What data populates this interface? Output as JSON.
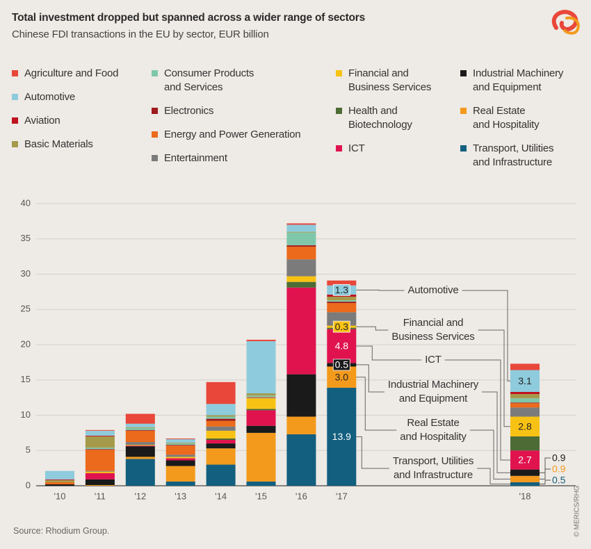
{
  "chart_data": {
    "type": "stacked_bar",
    "title": "Total investment dropped but spanned across a wider range of sectors",
    "subtitle": "Chinese FDI transactions in the EU by sector, EUR billion",
    "source": "Source: Rhodium Group.",
    "credit": "© MERICS/RHG",
    "categories": [
      "'10",
      "'11",
      "'12",
      "'13",
      "'14",
      "'15",
      "'16",
      "'17",
      "'18"
    ],
    "ylim": [
      0,
      40
    ],
    "yticks": [
      0,
      5,
      10,
      15,
      20,
      25,
      30,
      35,
      40
    ],
    "grid": true,
    "series": [
      {
        "name": "Agriculture and Food",
        "color": "#e8473a",
        "values": [
          0,
          0.1,
          1.4,
          0.1,
          3.1,
          0.2,
          0.2,
          0.7,
          0.9
        ]
      },
      {
        "name": "Automotive",
        "color": "#8ecbdc",
        "values": [
          1.2,
          0.7,
          0.5,
          0.5,
          1.6,
          7.4,
          1.0,
          1.3,
          3.1
        ],
        "value_labels": [
          null,
          null,
          null,
          null,
          null,
          null,
          null,
          "1.3",
          "3.1"
        ]
      },
      {
        "name": "Aviation",
        "color": "#c0121f",
        "values": [
          0.1,
          0.1,
          0,
          0,
          0,
          0,
          0,
          0.3,
          0.3
        ]
      },
      {
        "name": "Basic Materials",
        "color": "#a59a4a",
        "values": [
          0.3,
          1.6,
          0.1,
          0.1,
          0.2,
          0.3,
          0.1,
          0.5,
          0.6
        ]
      },
      {
        "name": "Consumer Products\nand Services",
        "color": "#7fc7ab",
        "values": [
          0,
          0.2,
          0.3,
          0.2,
          0.3,
          0.2,
          1.8,
          0.2,
          0.6
        ]
      },
      {
        "name": "Electronics",
        "color": "#9e1b1e",
        "values": [
          0,
          0.1,
          0.1,
          0.1,
          0.3,
          0,
          0.2,
          0.2,
          0.1
        ]
      },
      {
        "name": "Energy and Power Generation",
        "color": "#eb6a1b",
        "values": [
          0.3,
          3.0,
          1.6,
          1.3,
          0.8,
          0.1,
          1.8,
          1.3,
          0.6
        ]
      },
      {
        "name": "Entertainment",
        "color": "#7b7b7b",
        "values": [
          0,
          0.1,
          0.4,
          0.3,
          0.6,
          0.1,
          2.4,
          1.9,
          1.3
        ]
      },
      {
        "name": "Financial and\nBusiness Services",
        "color": "#f8c215",
        "values": [
          0,
          0.2,
          0.1,
          0.2,
          1.1,
          1.5,
          0.8,
          0.3,
          2.8
        ],
        "value_labels": [
          null,
          null,
          null,
          null,
          null,
          null,
          null,
          "0.3",
          "2.8"
        ]
      },
      {
        "name": "Health and\nBiotechnology",
        "color": "#4d6b35",
        "values": [
          0,
          0,
          0,
          0,
          0.2,
          0.2,
          0.8,
          0.2,
          2.0
        ]
      },
      {
        "name": "ICT",
        "color": "#e0134f",
        "values": [
          0,
          0.9,
          0.1,
          0.3,
          0.5,
          2.2,
          12.3,
          4.8,
          2.7
        ],
        "value_labels": [
          null,
          null,
          null,
          null,
          null,
          null,
          null,
          "4.8",
          "2.7"
        ]
      },
      {
        "name": "Industrial Machinery\nand Equipment",
        "color": "#1a1a1a",
        "values": [
          0.2,
          0.8,
          1.5,
          0.8,
          0.7,
          1.0,
          6.0,
          0.5,
          0.9
        ],
        "value_labels": [
          null,
          null,
          null,
          null,
          null,
          null,
          null,
          "0.5",
          "0.9"
        ]
      },
      {
        "name": "Real Estate\nand Hospitality",
        "color": "#f39a1c",
        "values": [
          0,
          0.1,
          0.3,
          2.2,
          2.3,
          6.9,
          2.5,
          3.0,
          0.9
        ],
        "value_labels": [
          null,
          null,
          null,
          null,
          null,
          null,
          null,
          "3.0",
          "0.9"
        ]
      },
      {
        "name": "Transport, Utilities\nand Infrastructure",
        "color": "#135f7f",
        "values": [
          0,
          0,
          3.8,
          0.6,
          3.0,
          0.6,
          7.3,
          13.9,
          0.5
        ],
        "value_labels": [
          null,
          null,
          null,
          null,
          null,
          null,
          null,
          "13.9",
          "0.5"
        ]
      }
    ],
    "annotations": [
      "Automotive",
      "Financial and\nBusiness Services",
      "ICT",
      "Industrial Machinery\nand Equipment",
      "Real Estate\nand Hospitality",
      "Transport, Utilities\nand Infrastructure"
    ]
  }
}
